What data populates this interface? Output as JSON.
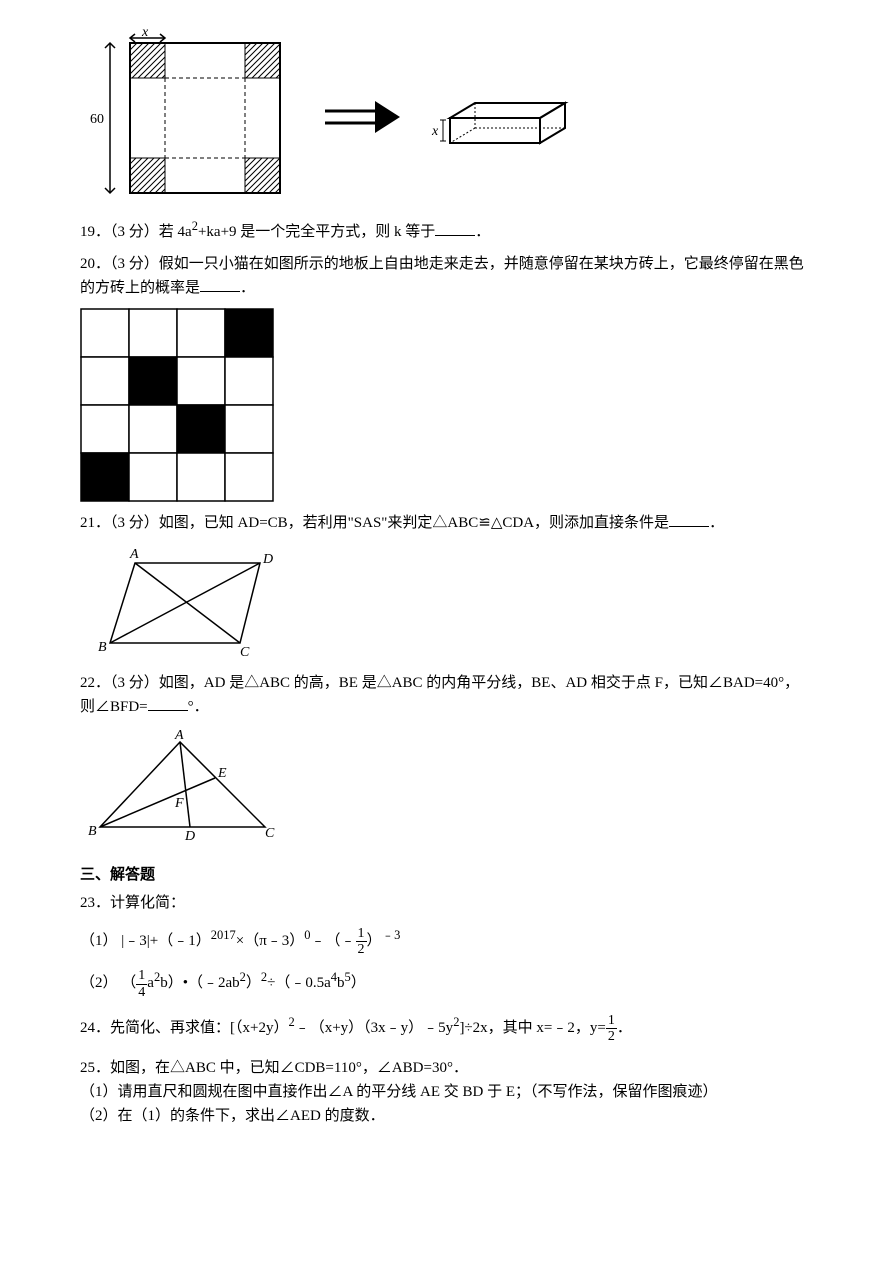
{
  "figure18": {
    "height_label": "60",
    "width_label": "x",
    "box_label": "x"
  },
  "q19": {
    "number": "19",
    "points": "（3 分）",
    "text_before": "若 4a",
    "exp1": "2",
    "text_mid": "+ka+9 是一个完全平方式，则 k 等于",
    "text_after": "．"
  },
  "q20": {
    "number": "20",
    "points": "（3 分）",
    "text": "假如一只小猫在如图所示的地板上自由地走来走去，并随意停留在某块方砖上，它最终停留在黑色的方砖上的概率是",
    "after": "．"
  },
  "grid": {
    "rows": 4,
    "cols": 4,
    "black_cells": [
      [
        0,
        3
      ],
      [
        1,
        1
      ],
      [
        2,
        2
      ],
      [
        3,
        0
      ]
    ],
    "black": "#000000",
    "white": "#ffffff",
    "border": "#000000"
  },
  "q21": {
    "number": "21",
    "points": "（3 分）",
    "text": "如图，已知 AD=CB，若利用\"SAS\"来判定△ABC≌△CDA，则添加直接条件是",
    "after": "．"
  },
  "figure21": {
    "labels": {
      "A": "A",
      "D": "D",
      "B": "B",
      "C": "C"
    }
  },
  "q22": {
    "number": "22",
    "points": "（3 分）",
    "text": "如图，AD 是△ABC 的高，BE 是△ABC 的内角平分线，BE、AD 相交于点 F，已知∠BAD=40°，则∠BFD=",
    "after": "°．"
  },
  "figure22": {
    "labels": {
      "A": "A",
      "B": "B",
      "C": "C",
      "D": "D",
      "E": "E",
      "F": "F"
    }
  },
  "section3": {
    "header": "三、解答题"
  },
  "q23": {
    "number": "23",
    "title": "．计算化简：",
    "part1_label": "（1）",
    "part1_expr1": "|﹣3|+（﹣1）",
    "part1_exp1": "2017",
    "part1_expr2": "×（π﹣3）",
    "part1_exp2": "0",
    "part1_expr3": "﹣（﹣",
    "part1_frac_num": "1",
    "part1_frac_den": "2",
    "part1_expr4": "）",
    "part1_exp3": "﹣3",
    "part2_label": "（2）",
    "part2_expr1": "（",
    "part2_frac_num": "1",
    "part2_frac_den": "4",
    "part2_expr2": "a",
    "part2_exp1": "2",
    "part2_expr3": "b）•（﹣2ab",
    "part2_exp2": "2",
    "part2_expr4": "）",
    "part2_exp3": "2",
    "part2_expr5": "÷（﹣0.5a",
    "part2_exp4": "4",
    "part2_expr6": "b",
    "part2_exp5": "5",
    "part2_expr7": "）"
  },
  "q24": {
    "number": "24",
    "text1": "．先简化、再求值：[（x+2y）",
    "exp1": "2",
    "text2": "﹣（x+y）（3x﹣y）﹣5y",
    "exp2": "2",
    "text3": "]÷2x，其中 x=﹣2，y=",
    "frac_num": "1",
    "frac_den": "2",
    "text4": "．"
  },
  "q25": {
    "number": "25",
    "text": "．如图，在△ABC 中，已知∠CDB=110°，∠ABD=30°．",
    "part1": "（1）请用直尺和圆规在图中直接作出∠A 的平分线 AE 交 BD 于 E；（不写作法，保留作图痕迹）",
    "part2": "（2）在（1）的条件下，求出∠AED 的度数．"
  }
}
